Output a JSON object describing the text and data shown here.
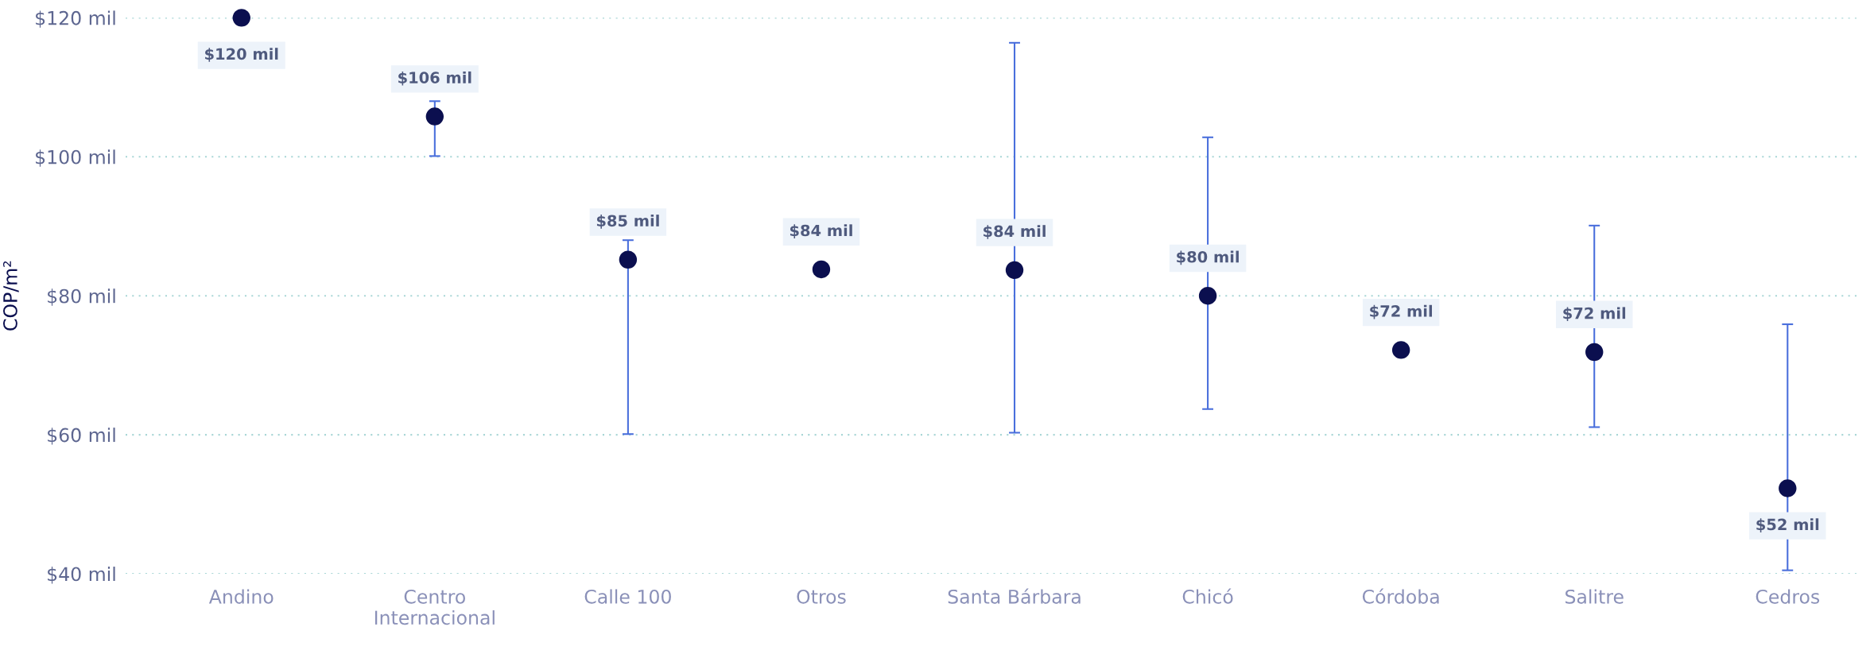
{
  "chart_data": {
    "type": "scatter",
    "ylabel": "COP/m²",
    "categories": [
      "Andino",
      "Centro Internacional",
      "Calle 100",
      "Otros",
      "Santa Bárbara",
      "Chicó",
      "Córdoba",
      "Salitre",
      "Cedros"
    ],
    "values": [
      120,
      105.8,
      85.2,
      83.8,
      83.7,
      80,
      72.2,
      71.9,
      52.3
    ],
    "errors": [
      null,
      [
        100.1,
        108
      ],
      [
        60.1,
        88
      ],
      null,
      [
        60.3,
        116.4
      ],
      [
        63.7,
        102.8
      ],
      null,
      [
        61.1,
        90.1
      ],
      [
        40.5,
        75.9
      ]
    ],
    "value_labels": [
      "$120 mil",
      "$106 mil",
      "$85 mil",
      "$84 mil",
      "$84 mil",
      "$80 mil",
      "$72 mil",
      "$72 mil",
      "$52 mil"
    ],
    "color": "#0b0f4f",
    "ylim": [
      40,
      120
    ],
    "yticks": [
      {
        "value": 40,
        "label": "$40 mil"
      },
      {
        "value": 60,
        "label": "$60 mil"
      },
      {
        "value": 80,
        "label": "$80 mil"
      },
      {
        "value": 100,
        "label": "$100 mil"
      },
      {
        "value": 120,
        "label": "$120 mil"
      }
    ],
    "grid": "y",
    "marker": "circle"
  }
}
